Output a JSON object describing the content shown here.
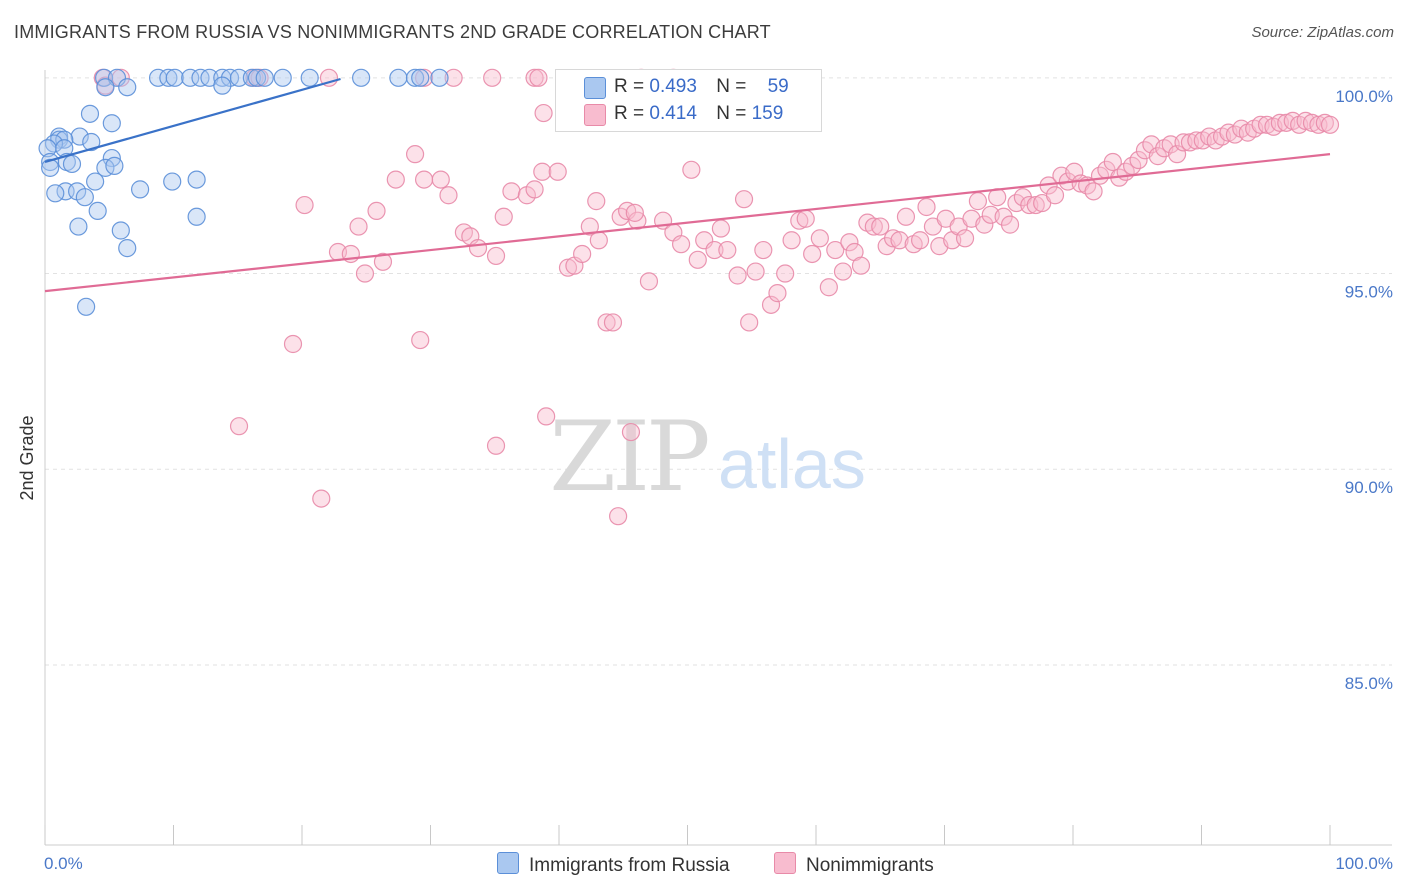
{
  "title": "IMMIGRANTS FROM RUSSIA VS NONIMMIGRANTS 2ND GRADE CORRELATION CHART",
  "source": "Source: ZipAtlas.com",
  "watermark": {
    "zip": "ZIP",
    "atlas": "atlas"
  },
  "colors": {
    "blue_fill": "#aac8f0",
    "blue_stroke": "#5b8fd8",
    "blue_line": "#3a72c8",
    "pink_fill": "#f8bccf",
    "pink_stroke": "#e88aa8",
    "pink_line": "#e06b95",
    "tick_text": "#4a78c8"
  },
  "legend": {
    "blue": {
      "r_label": "R = ",
      "r_value": "0.493",
      "n_label": "N = ",
      "n_value": "59"
    },
    "pink": {
      "r_label": "R = ",
      "r_value": "0.414",
      "n_label": "N = ",
      "n_value": "159"
    }
  },
  "bottom_legend": {
    "blue": "Immigrants from Russia",
    "pink": "Nonimmigrants"
  },
  "chart_data": {
    "type": "scatter",
    "title": "IMMIGRANTS FROM RUSSIA VS NONIMMIGRANTS 2ND GRADE CORRELATION CHART",
    "xlabel": "",
    "ylabel": "2nd Grade",
    "xlim": [
      0,
      100
    ],
    "ylim": [
      80.4,
      100.2
    ],
    "x_tick_labels": [
      "0.0%",
      "100.0%"
    ],
    "y_ticks": [
      100,
      95,
      90,
      85
    ],
    "y_tick_labels": [
      "100.0%",
      "95.0%",
      "90.0%",
      "85.0%"
    ],
    "grid": true,
    "legend_position": "top-center",
    "series": [
      {
        "name": "Immigrants from Russia",
        "color": "#5b8fd8",
        "R": 0.493,
        "N": 59,
        "trend": {
          "x": [
            0,
            23
          ],
          "y": [
            97.85,
            99.97
          ]
        },
        "points": [
          [
            4.6,
            100
          ],
          [
            5.6,
            100
          ],
          [
            8.8,
            100
          ],
          [
            9.6,
            100
          ],
          [
            10.1,
            100
          ],
          [
            11.3,
            100
          ],
          [
            12.1,
            100
          ],
          [
            12.8,
            100
          ],
          [
            13.8,
            100
          ],
          [
            14.4,
            100
          ],
          [
            15.1,
            100
          ],
          [
            16.1,
            100
          ],
          [
            16.5,
            100
          ],
          [
            17.1,
            100
          ],
          [
            18.5,
            100
          ],
          [
            20.6,
            100
          ],
          [
            24.6,
            100
          ],
          [
            27.5,
            100
          ],
          [
            28.8,
            100
          ],
          [
            29.2,
            100
          ],
          [
            30.7,
            100
          ],
          [
            13.8,
            99.8
          ],
          [
            4.7,
            99.76
          ],
          [
            6.4,
            99.76
          ],
          [
            3.5,
            99.08
          ],
          [
            1.1,
            98.5
          ],
          [
            2.7,
            98.5
          ],
          [
            5.2,
            98.84
          ],
          [
            1.1,
            98.42
          ],
          [
            1.5,
            98.42
          ],
          [
            0.7,
            98.32
          ],
          [
            3.6,
            98.36
          ],
          [
            0.2,
            98.2
          ],
          [
            1.5,
            98.2
          ],
          [
            0.4,
            97.85
          ],
          [
            1.7,
            97.85
          ],
          [
            2.1,
            97.8
          ],
          [
            5.2,
            97.95
          ],
          [
            4.7,
            97.7
          ],
          [
            5.4,
            97.75
          ],
          [
            0.4,
            97.7
          ],
          [
            1.6,
            97.1
          ],
          [
            2.5,
            97.1
          ],
          [
            0.8,
            97.05
          ],
          [
            3.9,
            97.35
          ],
          [
            7.4,
            97.15
          ],
          [
            9.9,
            97.35
          ],
          [
            11.8,
            97.4
          ],
          [
            3.1,
            96.95
          ],
          [
            4.1,
            96.6
          ],
          [
            11.8,
            96.45
          ],
          [
            2.6,
            96.2
          ],
          [
            5.9,
            96.1
          ],
          [
            6.4,
            95.65
          ],
          [
            3.2,
            94.15
          ]
        ]
      },
      {
        "name": "Nonimmigrants",
        "color": "#e88aa8",
        "R": 0.414,
        "N": 159,
        "trend": {
          "x": [
            0,
            100
          ],
          "y": [
            94.55,
            98.05
          ]
        },
        "points": [
          [
            4.5,
            100
          ],
          [
            4.7,
            99.8
          ],
          [
            5.9,
            100
          ],
          [
            16.3,
            100
          ],
          [
            16.7,
            100
          ],
          [
            22.1,
            100
          ],
          [
            29.5,
            100
          ],
          [
            31.8,
            100
          ],
          [
            34.8,
            100
          ],
          [
            38.1,
            100
          ],
          [
            38.4,
            100
          ],
          [
            46.4,
            100
          ],
          [
            48.9,
            100
          ],
          [
            49.3,
            99.1
          ],
          [
            38.8,
            99.1
          ],
          [
            20.2,
            96.75
          ],
          [
            22.8,
            95.55
          ],
          [
            23.8,
            95.5
          ],
          [
            24.4,
            96.2
          ],
          [
            24.9,
            95
          ],
          [
            25.8,
            96.6
          ],
          [
            26.3,
            95.3
          ],
          [
            27.3,
            97.4
          ],
          [
            28.8,
            98.05
          ],
          [
            29.5,
            97.4
          ],
          [
            30.8,
            97.4
          ],
          [
            31.4,
            97
          ],
          [
            32.6,
            96.05
          ],
          [
            33.1,
            95.95
          ],
          [
            33.7,
            95.65
          ],
          [
            35.1,
            95.45
          ],
          [
            35.7,
            96.45
          ],
          [
            36.3,
            97.1
          ],
          [
            37.5,
            97
          ],
          [
            38.1,
            97.15
          ],
          [
            38.7,
            97.6
          ],
          [
            39.9,
            97.6
          ],
          [
            40.7,
            95.15
          ],
          [
            41.2,
            95.2
          ],
          [
            41.8,
            95.5
          ],
          [
            42.4,
            96.2
          ],
          [
            42.9,
            96.85
          ],
          [
            43.7,
            93.75
          ],
          [
            44.2,
            93.75
          ],
          [
            44.8,
            96.45
          ],
          [
            45.3,
            96.6
          ],
          [
            46.1,
            96.35
          ],
          [
            47,
            94.8
          ],
          [
            48.1,
            96.35
          ],
          [
            48.9,
            96.05
          ],
          [
            49.5,
            95.75
          ],
          [
            50.3,
            97.65
          ],
          [
            50.8,
            95.35
          ],
          [
            51.3,
            95.85
          ],
          [
            52.1,
            95.6
          ],
          [
            52.6,
            96.15
          ],
          [
            53.1,
            95.6
          ],
          [
            53.9,
            94.95
          ],
          [
            54.4,
            96.9
          ],
          [
            54.8,
            93.75
          ],
          [
            55.3,
            95.05
          ],
          [
            55.9,
            95.6
          ],
          [
            56.5,
            94.2
          ],
          [
            57,
            94.5
          ],
          [
            57.6,
            95
          ],
          [
            58.1,
            95.85
          ],
          [
            58.7,
            96.35
          ],
          [
            59.2,
            96.4
          ],
          [
            59.7,
            95.5
          ],
          [
            60.3,
            95.9
          ],
          [
            61,
            94.65
          ],
          [
            61.5,
            95.6
          ],
          [
            62.1,
            95.05
          ],
          [
            62.6,
            95.8
          ],
          [
            63,
            95.55
          ],
          [
            63.5,
            95.2
          ],
          [
            64,
            96.3
          ],
          [
            64.5,
            96.2
          ],
          [
            65,
            96.2
          ],
          [
            65.5,
            95.7
          ],
          [
            66,
            95.9
          ],
          [
            66.5,
            95.85
          ],
          [
            67,
            96.45
          ],
          [
            67.6,
            95.75
          ],
          [
            68.1,
            95.85
          ],
          [
            68.6,
            96.7
          ],
          [
            69.1,
            96.2
          ],
          [
            69.6,
            95.7
          ],
          [
            70.1,
            96.4
          ],
          [
            70.6,
            95.85
          ],
          [
            71.1,
            96.2
          ],
          [
            71.6,
            95.9
          ],
          [
            72.1,
            96.4
          ],
          [
            72.6,
            96.85
          ],
          [
            73.1,
            96.25
          ],
          [
            73.6,
            96.5
          ],
          [
            74.1,
            96.95
          ],
          [
            74.6,
            96.45
          ],
          [
            75.1,
            96.25
          ],
          [
            75.6,
            96.8
          ],
          [
            76.1,
            96.95
          ],
          [
            76.6,
            96.75
          ],
          [
            77.1,
            96.75
          ],
          [
            77.6,
            96.8
          ],
          [
            78.1,
            97.25
          ],
          [
            78.6,
            97
          ],
          [
            79.1,
            97.5
          ],
          [
            79.6,
            97.35
          ],
          [
            80.1,
            97.6
          ],
          [
            80.6,
            97.3
          ],
          [
            81.1,
            97.25
          ],
          [
            81.6,
            97.1
          ],
          [
            82.1,
            97.5
          ],
          [
            82.6,
            97.65
          ],
          [
            83.1,
            97.85
          ],
          [
            83.6,
            97.45
          ],
          [
            84.1,
            97.6
          ],
          [
            84.6,
            97.75
          ],
          [
            85.1,
            97.9
          ],
          [
            85.6,
            98.15
          ],
          [
            86.1,
            98.3
          ],
          [
            86.6,
            98
          ],
          [
            87.1,
            98.2
          ],
          [
            87.6,
            98.3
          ],
          [
            88.1,
            98.05
          ],
          [
            88.6,
            98.35
          ],
          [
            89.1,
            98.35
          ],
          [
            89.6,
            98.4
          ],
          [
            90.1,
            98.4
          ],
          [
            90.6,
            98.5
          ],
          [
            91.1,
            98.4
          ],
          [
            91.6,
            98.5
          ],
          [
            92.1,
            98.6
          ],
          [
            92.6,
            98.55
          ],
          [
            93.1,
            98.7
          ],
          [
            93.6,
            98.6
          ],
          [
            94.1,
            98.7
          ],
          [
            94.6,
            98.8
          ],
          [
            95.1,
            98.8
          ],
          [
            95.6,
            98.75
          ],
          [
            96.1,
            98.85
          ],
          [
            96.6,
            98.85
          ],
          [
            97.1,
            98.9
          ],
          [
            97.6,
            98.8
          ],
          [
            98.1,
            98.9
          ],
          [
            98.6,
            98.85
          ],
          [
            99.1,
            98.8
          ],
          [
            99.6,
            98.85
          ],
          [
            100,
            98.8
          ],
          [
            19.3,
            93.2
          ],
          [
            29.2,
            93.3
          ],
          [
            15.1,
            91.1
          ],
          [
            35.1,
            90.6
          ],
          [
            39,
            91.35
          ],
          [
            45.6,
            90.95
          ],
          [
            21.5,
            89.25
          ],
          [
            44.6,
            88.8
          ],
          [
            43.1,
            95.85
          ],
          [
            45.9,
            96.55
          ]
        ]
      }
    ]
  }
}
